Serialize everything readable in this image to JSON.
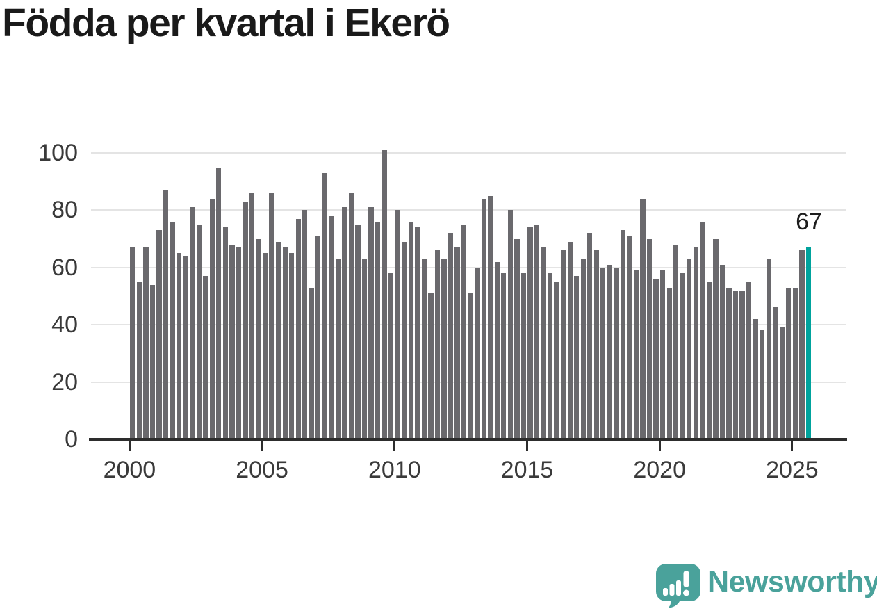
{
  "title": "Födda per kvartal i Ekerö",
  "annotation": {
    "last_value_label": "67"
  },
  "watermark": {
    "brand": "Newsworthy"
  },
  "colors": {
    "bar": "#6a696d",
    "highlight": "#00a39d",
    "axis": "#2d2d2d",
    "grid": "#e4e4e4",
    "title": "#1a1a1a",
    "tick_label": "#3a3a3a",
    "annotation": "#1d1d1d",
    "logo": "#4aa29b"
  },
  "chart_data": {
    "type": "bar",
    "title": "Födda per kvartal i Ekerö",
    "x_frequency": "quarterly",
    "x_start": "2000-Q1",
    "x_end": "2025-Q3",
    "x_tick_labels": [
      "2000",
      "2005",
      "2010",
      "2015",
      "2020",
      "2025"
    ],
    "y_tick_labels": [
      "0",
      "20",
      "40",
      "60",
      "80",
      "100"
    ],
    "ylim": [
      0,
      100
    ],
    "grid": true,
    "legend": "none",
    "highlight": {
      "period": "2025-Q3",
      "value": 67,
      "label": "67"
    },
    "series": [
      {
        "name": "Födda",
        "by_year": [
          {
            "year": 2000,
            "values": [
              67,
              55,
              67,
              54
            ]
          },
          {
            "year": 2001,
            "values": [
              73,
              87,
              76,
              65
            ]
          },
          {
            "year": 2002,
            "values": [
              64,
              81,
              75,
              57
            ]
          },
          {
            "year": 2003,
            "values": [
              84,
              95,
              74,
              68
            ]
          },
          {
            "year": 2004,
            "values": [
              67,
              83,
              86,
              70
            ]
          },
          {
            "year": 2005,
            "values": [
              65,
              86,
              69,
              67
            ]
          },
          {
            "year": 2006,
            "values": [
              65,
              77,
              80,
              53
            ]
          },
          {
            "year": 2007,
            "values": [
              71,
              93,
              78,
              63
            ]
          },
          {
            "year": 2008,
            "values": [
              81,
              86,
              75,
              63
            ]
          },
          {
            "year": 2009,
            "values": [
              81,
              76,
              101,
              58
            ]
          },
          {
            "year": 2010,
            "values": [
              80,
              69,
              76,
              74
            ]
          },
          {
            "year": 2011,
            "values": [
              63,
              51,
              66,
              63
            ]
          },
          {
            "year": 2012,
            "values": [
              72,
              67,
              75,
              51
            ]
          },
          {
            "year": 2013,
            "values": [
              60,
              84,
              85,
              62
            ]
          },
          {
            "year": 2014,
            "values": [
              58,
              80,
              70,
              58
            ]
          },
          {
            "year": 2015,
            "values": [
              74,
              75,
              67,
              58
            ]
          },
          {
            "year": 2016,
            "values": [
              55,
              66,
              69,
              57
            ]
          },
          {
            "year": 2017,
            "values": [
              63,
              72,
              66,
              60
            ]
          },
          {
            "year": 2018,
            "values": [
              61,
              60,
              73,
              71
            ]
          },
          {
            "year": 2019,
            "values": [
              59,
              84,
              70,
              56
            ]
          },
          {
            "year": 2020,
            "values": [
              59,
              53,
              68,
              58
            ]
          },
          {
            "year": 2021,
            "values": [
              63,
              67,
              76,
              55
            ]
          },
          {
            "year": 2022,
            "values": [
              70,
              61,
              53,
              52
            ]
          },
          {
            "year": 2023,
            "values": [
              52,
              55,
              42,
              38
            ]
          },
          {
            "year": 2024,
            "values": [
              63,
              46,
              39,
              53
            ]
          },
          {
            "year": 2025,
            "values": [
              53,
              66,
              67
            ]
          }
        ]
      }
    ]
  }
}
